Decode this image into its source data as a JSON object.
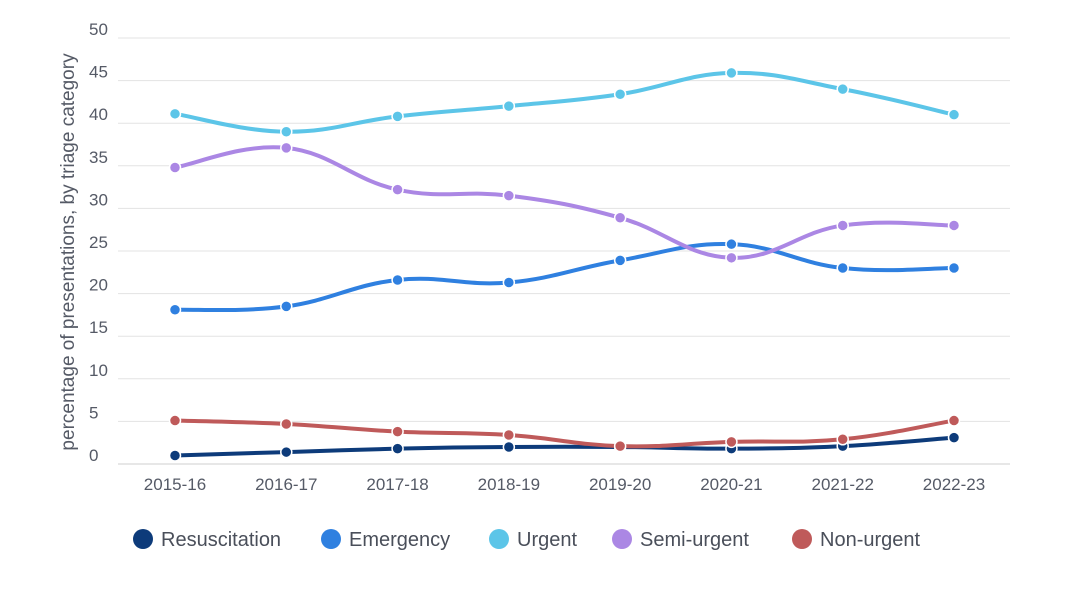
{
  "chart_data": {
    "type": "line",
    "title": "",
    "xlabel": "",
    "ylabel": "percentage of presentations, by triage category",
    "ylim": [
      0,
      50
    ],
    "yticks": [
      0,
      5,
      10,
      15,
      20,
      25,
      30,
      35,
      40,
      45,
      50
    ],
    "grid": "horizontal",
    "legend_position": "bottom",
    "categories": [
      "2015-16",
      "2016-17",
      "2017-18",
      "2018-19",
      "2019-20",
      "2020-21",
      "2021-22",
      "2022-23"
    ],
    "series": [
      {
        "name": "Resuscitation",
        "color": "#0d3b7a",
        "values": [
          1.0,
          1.4,
          1.8,
          2.0,
          2.0,
          1.8,
          2.1,
          3.1
        ]
      },
      {
        "name": "Emergency",
        "color": "#2f80e0",
        "values": [
          18.1,
          18.5,
          21.6,
          21.3,
          23.9,
          25.8,
          23.0,
          23.0
        ]
      },
      {
        "name": "Urgent",
        "color": "#5cc5e8",
        "values": [
          41.1,
          39.0,
          40.8,
          42.0,
          43.4,
          45.9,
          44.0,
          41.0
        ]
      },
      {
        "name": "Semi-urgent",
        "color": "#ab87e4",
        "values": [
          34.8,
          37.1,
          32.2,
          31.5,
          28.9,
          24.2,
          28.0,
          28.0
        ]
      },
      {
        "name": "Non-urgent",
        "color": "#bf5a5a",
        "values": [
          5.1,
          4.7,
          3.8,
          3.4,
          2.1,
          2.6,
          2.9,
          5.1
        ]
      }
    ]
  }
}
